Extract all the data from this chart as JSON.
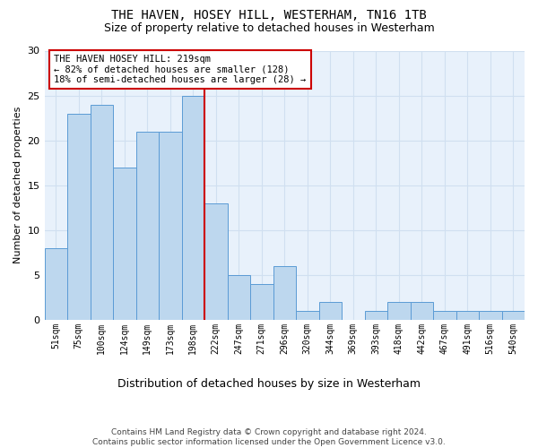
{
  "title": "THE HAVEN, HOSEY HILL, WESTERHAM, TN16 1TB",
  "subtitle": "Size of property relative to detached houses in Westerham",
  "xlabel": "Distribution of detached houses by size in Westerham",
  "ylabel": "Number of detached properties",
  "categories": [
    "51sqm",
    "75sqm",
    "100sqm",
    "124sqm",
    "149sqm",
    "173sqm",
    "198sqm",
    "222sqm",
    "247sqm",
    "271sqm",
    "296sqm",
    "320sqm",
    "344sqm",
    "369sqm",
    "393sqm",
    "418sqm",
    "442sqm",
    "467sqm",
    "491sqm",
    "516sqm",
    "540sqm"
  ],
  "values": [
    8,
    23,
    24,
    17,
    21,
    21,
    25,
    13,
    5,
    4,
    6,
    1,
    2,
    0,
    1,
    2,
    2,
    1,
    1,
    1,
    1
  ],
  "bar_color": "#BDD7EE",
  "bar_edge_color": "#5B9BD5",
  "vline_x": 7.0,
  "vline_color": "#CC0000",
  "annotation_title": "THE HAVEN HOSEY HILL: 219sqm",
  "annotation_line1": "← 82% of detached houses are smaller (128)",
  "annotation_line2": "18% of semi-detached houses are larger (28) →",
  "annotation_box_edgecolor": "#CC0000",
  "ylim": [
    0,
    30
  ],
  "yticks": [
    0,
    5,
    10,
    15,
    20,
    25,
    30
  ],
  "grid_color": "#D0DFF0",
  "plot_bg_color": "#E8F1FB",
  "footer1": "Contains HM Land Registry data © Crown copyright and database right 2024.",
  "footer2": "Contains public sector information licensed under the Open Government Licence v3.0."
}
